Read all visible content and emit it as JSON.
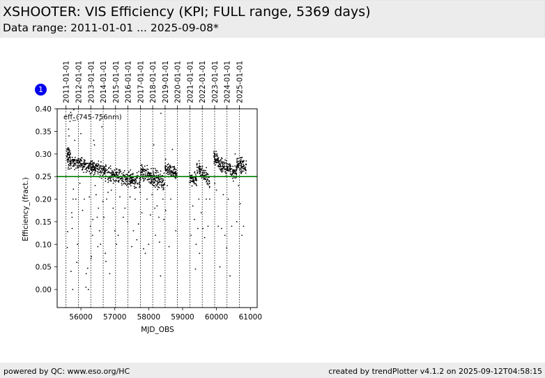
{
  "header": {
    "title": "XSHOOTER: VIS Efficiency (KPI; FULL range, 5369 days)",
    "subtitle": "Data range: 2011-01-01 ... 2025-09-08*"
  },
  "badge": {
    "label": "1",
    "color": "#0000ee"
  },
  "footer": {
    "left": "powered by QC: www.eso.org/HC",
    "right": "created by trendPlotter v4.1.2 on 2025-09-12T04:58:15"
  },
  "chart_data": {
    "type": "scatter",
    "xlabel": "MJD_OBS",
    "ylabel": "Efficiency_(fract.)",
    "annotation": "eff_(745-756nm)",
    "xlim": [
      55300,
      61200
    ],
    "ylim": [
      -0.04,
      0.4
    ],
    "x_ticks": [
      56000,
      57000,
      58000,
      59000,
      60000,
      61000
    ],
    "x_tick_labels": [
      "56000",
      "57000",
      "58000",
      "59000",
      "60000",
      "61000"
    ],
    "y_ticks": [
      0.0,
      0.05,
      0.1,
      0.15,
      0.2,
      0.25,
      0.3,
      0.35,
      0.4
    ],
    "y_tick_labels": [
      "0.00",
      "0.05",
      "0.10",
      "0.15",
      "0.20",
      "0.25",
      "0.30",
      "0.35",
      "0.40"
    ],
    "reference_line": {
      "y": 0.25,
      "color": "#008000"
    },
    "point_color": "#000000",
    "year_markers": [
      {
        "label": "2011-01-01",
        "mjd": 55562
      },
      {
        "label": "2012-01-01",
        "mjd": 55927
      },
      {
        "label": "2013-01-01",
        "mjd": 56293
      },
      {
        "label": "2014-01-01",
        "mjd": 56658
      },
      {
        "label": "2015-01-01",
        "mjd": 57023
      },
      {
        "label": "2016-01-01",
        "mjd": 57388
      },
      {
        "label": "2017-01-01",
        "mjd": 57754
      },
      {
        "label": "2018-01-01",
        "mjd": 58119
      },
      {
        "label": "2019-01-01",
        "mjd": 58484
      },
      {
        "label": "2020-01-01",
        "mjd": 58849
      },
      {
        "label": "2021-01-01",
        "mjd": 59215
      },
      {
        "label": "2022-01-01",
        "mjd": 59580
      },
      {
        "label": "2023-01-01",
        "mjd": 59945
      },
      {
        "label": "2024-01-01",
        "mjd": 60310
      },
      {
        "label": "2025-01-01",
        "mjd": 60676
      }
    ],
    "trend_segments": [
      {
        "x0": 55580,
        "x1": 55700,
        "y0": 0.3,
        "y1": 0.285,
        "spread": 0.015,
        "n": 60
      },
      {
        "x0": 55700,
        "x1": 56300,
        "y0": 0.285,
        "y1": 0.27,
        "spread": 0.01,
        "n": 150
      },
      {
        "x0": 56300,
        "x1": 56700,
        "y0": 0.272,
        "y1": 0.262,
        "spread": 0.01,
        "n": 110
      },
      {
        "x0": 56700,
        "x1": 57350,
        "y0": 0.258,
        "y1": 0.245,
        "spread": 0.012,
        "n": 150
      },
      {
        "x0": 57350,
        "x1": 57760,
        "y0": 0.246,
        "y1": 0.24,
        "spread": 0.012,
        "n": 100
      },
      {
        "x0": 57760,
        "x1": 58100,
        "y0": 0.262,
        "y1": 0.248,
        "spread": 0.012,
        "n": 100
      },
      {
        "x0": 58100,
        "x1": 58470,
        "y0": 0.25,
        "y1": 0.238,
        "spread": 0.014,
        "n": 110
      },
      {
        "x0": 58480,
        "x1": 58830,
        "y0": 0.27,
        "y1": 0.258,
        "spread": 0.01,
        "n": 100
      },
      {
        "x0": 59200,
        "x1": 59420,
        "y0": 0.248,
        "y1": 0.243,
        "spread": 0.01,
        "n": 60
      },
      {
        "x0": 59420,
        "x1": 59800,
        "y0": 0.268,
        "y1": 0.24,
        "spread": 0.012,
        "n": 100
      },
      {
        "x0": 59920,
        "x1": 60050,
        "y0": 0.295,
        "y1": 0.285,
        "spread": 0.01,
        "n": 50
      },
      {
        "x0": 60050,
        "x1": 60600,
        "y0": 0.278,
        "y1": 0.258,
        "spread": 0.01,
        "n": 140
      },
      {
        "x0": 60600,
        "x1": 60880,
        "y0": 0.28,
        "y1": 0.27,
        "spread": 0.012,
        "n": 80
      }
    ],
    "outliers": [
      [
        55600,
        0.093
      ],
      [
        55610,
        0.128
      ],
      [
        55640,
        0.355
      ],
      [
        55650,
        0.34
      ],
      [
        55680,
        0.372
      ],
      [
        55700,
        0.392
      ],
      [
        55710,
        0.04
      ],
      [
        55730,
        0.17
      ],
      [
        55740,
        0.16
      ],
      [
        55745,
        0.135
      ],
      [
        55760,
        0.0
      ],
      [
        55770,
        0.2
      ],
      [
        55780,
        0.222
      ],
      [
        55790,
        0.398
      ],
      [
        55800,
        0.38
      ],
      [
        55820,
        0.33
      ],
      [
        55850,
        0.2
      ],
      [
        55880,
        0.06
      ],
      [
        55900,
        0.1
      ],
      [
        55930,
        0.29
      ],
      [
        55970,
        0.235
      ],
      [
        56000,
        0.345
      ],
      [
        56050,
        0.175
      ],
      [
        56100,
        0.2
      ],
      [
        56150,
        0.005
      ],
      [
        56160,
        0.035
      ],
      [
        56200,
        0.047
      ],
      [
        56220,
        0.0
      ],
      [
        56250,
        0.205
      ],
      [
        56280,
        0.14
      ],
      [
        56300,
        0.068
      ],
      [
        56310,
        0.073
      ],
      [
        56340,
        0.12
      ],
      [
        56350,
        0.155
      ],
      [
        56380,
        0.33
      ],
      [
        56400,
        0.32
      ],
      [
        56420,
        0.23
      ],
      [
        56450,
        0.21
      ],
      [
        56480,
        0.16
      ],
      [
        56500,
        0.095
      ],
      [
        56520,
        0.18
      ],
      [
        56550,
        0.13
      ],
      [
        56560,
        0.375
      ],
      [
        56580,
        0.1
      ],
      [
        56620,
        0.36
      ],
      [
        56650,
        0.195
      ],
      [
        56680,
        0.16
      ],
      [
        56720,
        0.08
      ],
      [
        56740,
        0.062
      ],
      [
        56760,
        0.2
      ],
      [
        56800,
        0.215
      ],
      [
        56850,
        0.035
      ],
      [
        56900,
        0.22
      ],
      [
        56950,
        0.18
      ],
      [
        57000,
        0.13
      ],
      [
        57050,
        0.1
      ],
      [
        57100,
        0.12
      ],
      [
        57150,
        0.205
      ],
      [
        57200,
        0.235
      ],
      [
        57250,
        0.16
      ],
      [
        57300,
        0.18
      ],
      [
        57350,
        0.23
      ],
      [
        57380,
        0.15
      ],
      [
        57450,
        0.205
      ],
      [
        57500,
        0.095
      ],
      [
        57550,
        0.13
      ],
      [
        57600,
        0.2
      ],
      [
        57650,
        0.11
      ],
      [
        57700,
        0.145
      ],
      [
        57750,
        0.215
      ],
      [
        57800,
        0.17
      ],
      [
        57850,
        0.09
      ],
      [
        57900,
        0.08
      ],
      [
        57950,
        0.2
      ],
      [
        58000,
        0.1
      ],
      [
        58050,
        0.165
      ],
      [
        58100,
        0.21
      ],
      [
        58150,
        0.32
      ],
      [
        58180,
        0.18
      ],
      [
        58200,
        0.12
      ],
      [
        58250,
        0.185
      ],
      [
        58300,
        0.16
      ],
      [
        58320,
        0.105
      ],
      [
        58350,
        0.03
      ],
      [
        58360,
        0.39
      ],
      [
        58380,
        0.23
      ],
      [
        58420,
        0.2
      ],
      [
        58450,
        0.155
      ],
      [
        58500,
        0.175
      ],
      [
        58550,
        0.23
      ],
      [
        58600,
        0.095
      ],
      [
        58650,
        0.2
      ],
      [
        58700,
        0.31
      ],
      [
        58800,
        0.13
      ],
      [
        59250,
        0.12
      ],
      [
        59300,
        0.185
      ],
      [
        59350,
        0.155
      ],
      [
        59380,
        0.045
      ],
      [
        59400,
        0.1
      ],
      [
        59450,
        0.135
      ],
      [
        59480,
        0.2
      ],
      [
        59500,
        0.08
      ],
      [
        59550,
        0.17
      ],
      [
        59600,
        0.135
      ],
      [
        59650,
        0.115
      ],
      [
        59700,
        0.2
      ],
      [
        59750,
        0.14
      ],
      [
        59800,
        0.2
      ],
      [
        59950,
        0.235
      ],
      [
        60000,
        0.22
      ],
      [
        60050,
        0.14
      ],
      [
        60100,
        0.05
      ],
      [
        60150,
        0.135
      ],
      [
        60200,
        0.21
      ],
      [
        60250,
        0.12
      ],
      [
        60300,
        0.092
      ],
      [
        60350,
        0.2
      ],
      [
        60400,
        0.03
      ],
      [
        60450,
        0.14
      ],
      [
        60500,
        0.24
      ],
      [
        60550,
        0.3
      ],
      [
        60600,
        0.15
      ],
      [
        60650,
        0.23
      ],
      [
        60700,
        0.19
      ],
      [
        60750,
        0.12
      ],
      [
        60800,
        0.14
      ]
    ]
  }
}
